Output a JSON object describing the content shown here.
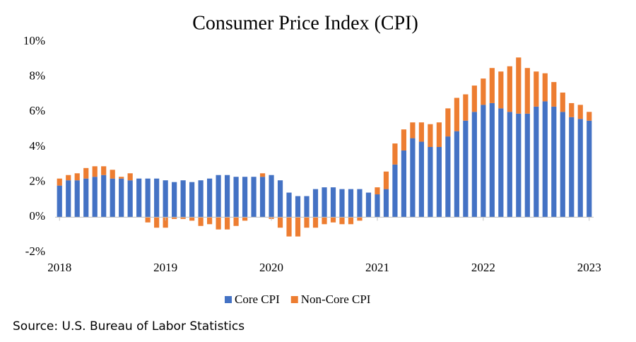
{
  "chart_data": {
    "type": "stacked_bar",
    "title": "Consumer Price Index (CPI)",
    "source": "Source: U.S. Bureau of Labor Statistics",
    "categories": [
      "2018",
      null,
      null,
      null,
      null,
      null,
      null,
      null,
      null,
      null,
      null,
      null,
      "2019",
      null,
      null,
      null,
      null,
      null,
      null,
      null,
      null,
      null,
      null,
      null,
      "2020",
      null,
      null,
      null,
      null,
      null,
      null,
      null,
      null,
      null,
      null,
      null,
      "2021",
      null,
      null,
      null,
      null,
      null,
      null,
      null,
      null,
      null,
      null,
      null,
      "2022",
      null,
      null,
      null,
      null,
      null,
      null,
      null,
      null,
      null,
      null,
      null,
      "2023"
    ],
    "series": [
      {
        "name": "Core CPI",
        "color": "#4472c4",
        "values": [
          1.8,
          2.1,
          2.1,
          2.2,
          2.3,
          2.4,
          2.2,
          2.2,
          2.1,
          2.2,
          2.2,
          2.2,
          2.1,
          2.0,
          2.1,
          2.0,
          2.1,
          2.2,
          2.4,
          2.4,
          2.3,
          2.3,
          2.3,
          2.3,
          2.4,
          2.1,
          1.4,
          1.2,
          1.2,
          1.6,
          1.7,
          1.7,
          1.6,
          1.6,
          1.6,
          1.4,
          1.3,
          1.6,
          3.0,
          3.8,
          4.5,
          4.3,
          4.0,
          4.0,
          4.6,
          4.9,
          5.5,
          6.0,
          6.4,
          6.5,
          6.2,
          6.0,
          5.9,
          5.9,
          6.3,
          6.6,
          6.3,
          6.0,
          5.7,
          5.6,
          5.5
        ]
      },
      {
        "name": "Non-Core CPI",
        "color": "#ed7d31",
        "values": [
          0.4,
          0.3,
          0.4,
          0.6,
          0.6,
          0.5,
          0.5,
          0.1,
          0.4,
          0.0,
          -0.3,
          -0.6,
          -0.6,
          -0.1,
          -0.1,
          -0.2,
          -0.5,
          -0.4,
          -0.7,
          -0.7,
          -0.5,
          -0.2,
          0.0,
          0.2,
          -0.1,
          -0.6,
          -1.1,
          -1.1,
          -0.6,
          -0.6,
          -0.4,
          -0.3,
          -0.4,
          -0.4,
          -0.2,
          0.0,
          0.4,
          1.0,
          1.2,
          1.2,
          0.9,
          1.1,
          1.3,
          1.4,
          1.6,
          1.9,
          1.5,
          1.5,
          1.5,
          2.0,
          2.1,
          2.6,
          3.2,
          2.6,
          2.0,
          1.6,
          1.4,
          1.1,
          0.8,
          0.8,
          0.5
        ]
      }
    ],
    "ylim": [
      -2,
      10
    ],
    "yticks": [
      {
        "value": -2,
        "label": "-2%"
      },
      {
        "value": 0,
        "label": "0%"
      },
      {
        "value": 2,
        "label": "2%"
      },
      {
        "value": 4,
        "label": "4%"
      },
      {
        "value": 6,
        "label": "6%"
      },
      {
        "value": 8,
        "label": "8%"
      },
      {
        "value": 10,
        "label": "10%"
      }
    ],
    "legend": "bottom"
  }
}
